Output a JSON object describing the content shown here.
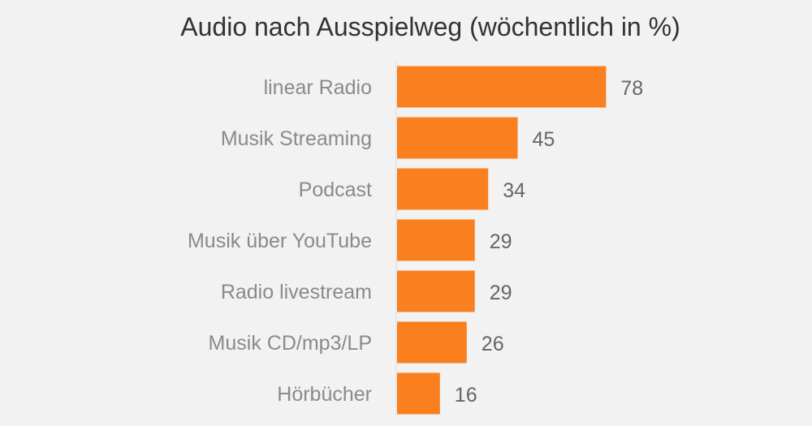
{
  "chart_data": {
    "type": "bar",
    "orientation": "horizontal",
    "title": "Audio nach Ausspielweg  (wöchentlich in %)",
    "xlabel": "",
    "ylabel": "",
    "categories": [
      "linear Radio",
      "Musik Streaming",
      "Podcast",
      "Musik über YouTube",
      "Radio livestream",
      "Musik CD/mp3/LP",
      "Hörbücher"
    ],
    "values": [
      78,
      45,
      34,
      29,
      29,
      26,
      16
    ],
    "xlim": [
      0,
      100
    ],
    "grid": false,
    "legend": "none",
    "bar_color": "#fa7f1e",
    "background": "#f2f2f2"
  }
}
